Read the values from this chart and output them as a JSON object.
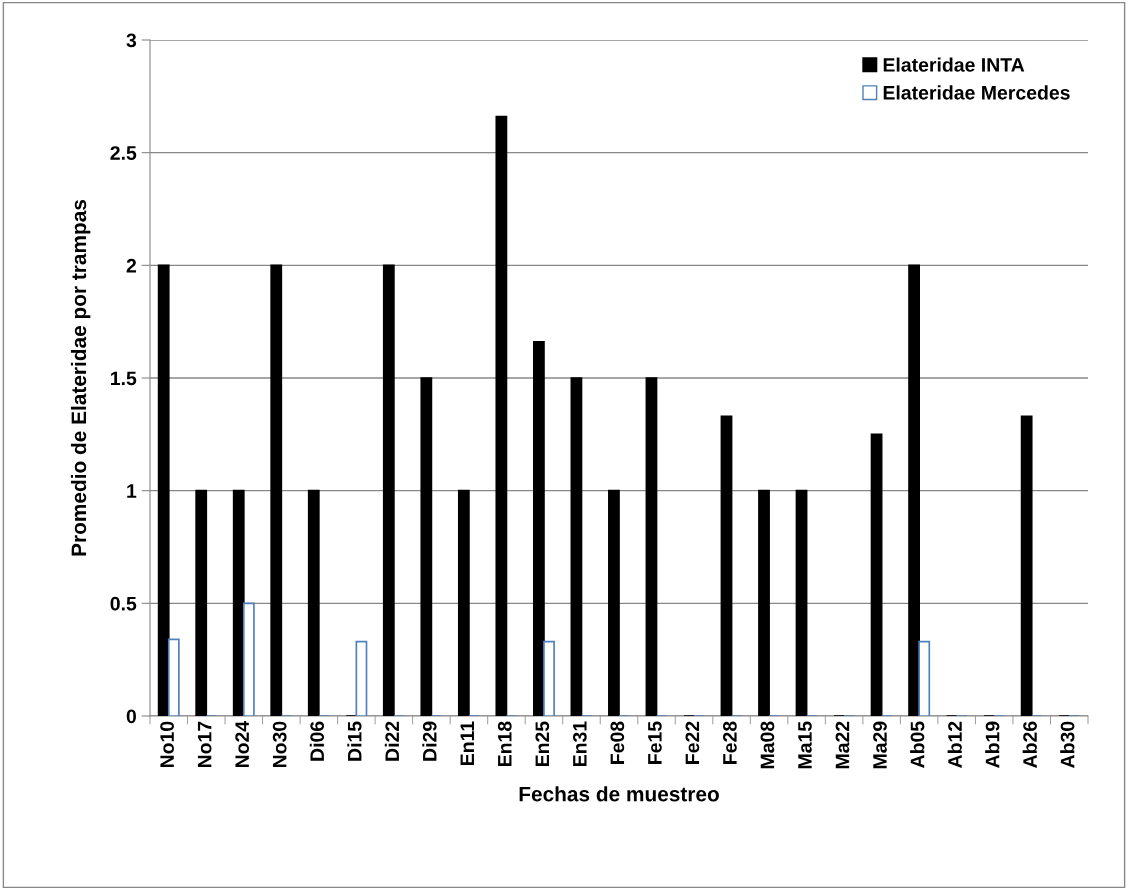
{
  "chart_data": {
    "type": "bar",
    "xlabel": "Fechas de muestreo",
    "ylabel": "Promedio de Elateridae por trampas",
    "categories": [
      "No10",
      "No17",
      "No24",
      "No30",
      "Di06",
      "Di15",
      "Di22",
      "Di29",
      "En11",
      "En18",
      "En25",
      "En31",
      "Fe08",
      "Fe15",
      "Fe22",
      "Fe28",
      "Ma08",
      "Ma15",
      "Ma22",
      "Ma29",
      "Ab05",
      "Ab12",
      "Ab19",
      "Ab26",
      "Ab30"
    ],
    "series": [
      {
        "name": "Elateridae INTA",
        "color": "#000000",
        "values": [
          2,
          1,
          1,
          2,
          1,
          0,
          2,
          1.5,
          1,
          2.66,
          1.66,
          1.5,
          1,
          1.5,
          0,
          1.33,
          1,
          1,
          0,
          1.25,
          2,
          0,
          0,
          1.33,
          0
        ]
      },
      {
        "name": "Elateridae Mercedes",
        "color": "#4f81bd",
        "values": [
          0.34,
          0,
          0.5,
          0,
          0,
          0.33,
          0,
          0,
          0,
          0,
          0.33,
          0,
          0,
          0,
          0,
          0,
          0,
          0,
          0,
          0,
          0.33,
          0,
          0,
          0,
          0
        ]
      }
    ],
    "ylim": [
      0,
      3
    ],
    "yticks": [
      0,
      0.5,
      1,
      1.5,
      2,
      2.5,
      3
    ],
    "grid": "y",
    "legend": "top right"
  }
}
